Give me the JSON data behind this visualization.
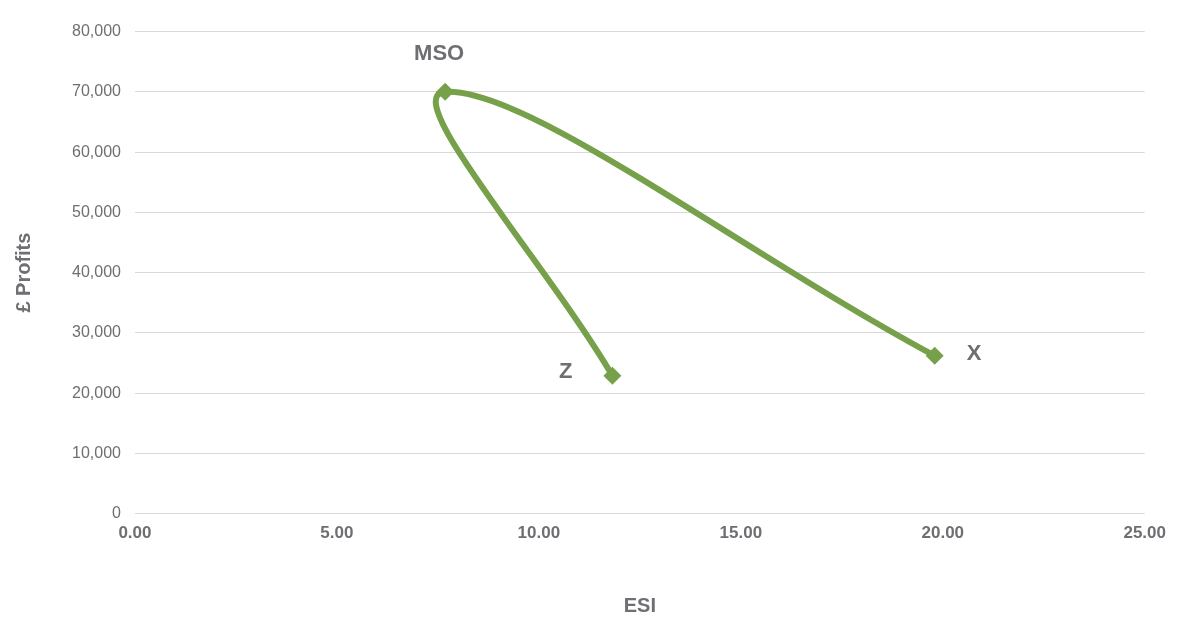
{
  "chart_data": {
    "type": "line",
    "xlabel": "ESI",
    "ylabel": "£ Profits",
    "x": [
      11.82,
      7.68,
      19.8
    ],
    "series": [
      {
        "color": "#76a04a",
        "values": [
          22900,
          70000,
          26200
        ]
      }
    ],
    "xlim": [
      0,
      25
    ],
    "xticks": [
      {
        "value": 0,
        "label": "0.00"
      },
      {
        "value": 5,
        "label": "5.00"
      },
      {
        "value": 10,
        "label": "10.00"
      },
      {
        "value": 15,
        "label": "15.00"
      },
      {
        "value": 20,
        "label": "20.00"
      },
      {
        "value": 25,
        "label": "25.00"
      }
    ],
    "ylim": [
      0,
      80000
    ],
    "yticks": [
      0,
      {
        "value": 10000,
        "label": "10,000"
      },
      {
        "value": 20000,
        "label": "20,000"
      },
      {
        "value": 30000,
        "label": "30,000"
      },
      {
        "value": 40000,
        "label": "40,000"
      },
      {
        "value": 50000,
        "label": "50,000"
      },
      {
        "value": 60000,
        "label": "60,000"
      },
      {
        "value": 70000,
        "label": "70,000"
      },
      {
        "value": 80000,
        "label": "80,000"
      }
    ],
    "annotations": [
      {
        "text": "Z",
        "x": 11.82,
        "y": 22900
      },
      {
        "text": "MSO",
        "x": 7.68,
        "y": 70000
      },
      {
        "text": "X",
        "x": 19.8,
        "y": 26200
      }
    ],
    "grid": "y",
    "legend": false,
    "marker": "diamond",
    "line_style": "solid"
  }
}
